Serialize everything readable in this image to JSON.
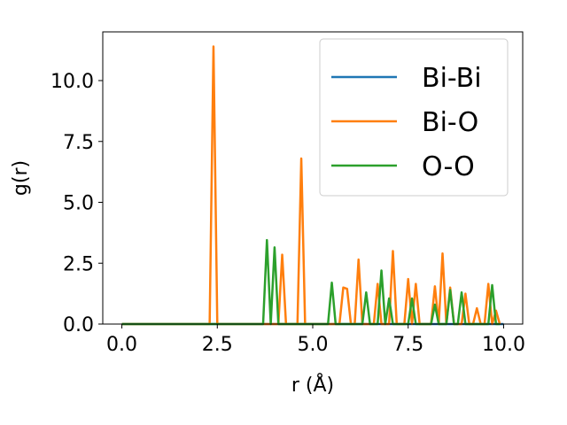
{
  "chart_data": {
    "type": "line",
    "title": "",
    "xlabel": "r (Å)",
    "ylabel": "g(r)",
    "xlim": [
      -0.5,
      10.5
    ],
    "ylim": [
      0,
      12
    ],
    "xticks": [
      0.0,
      2.5,
      5.0,
      7.5,
      10.0
    ],
    "xtick_labels": [
      "0.0",
      "2.5",
      "5.0",
      "7.5",
      "10.0"
    ],
    "yticks": [
      0.0,
      2.5,
      5.0,
      7.5,
      10.0
    ],
    "ytick_labels": [
      "0.0",
      "2.5",
      "5.0",
      "7.5",
      "10.0"
    ],
    "grid": false,
    "legend_position": "top-right",
    "series": [
      {
        "name": "Bi-Bi",
        "color": "#1f77b4",
        "x": [
          0.0,
          10.0
        ],
        "y": [
          0.0,
          0.0
        ]
      },
      {
        "name": "Bi-O",
        "color": "#ff7f0e",
        "x": [
          0.0,
          2.3,
          2.4,
          2.5,
          4.6,
          4.7,
          4.8,
          4.1,
          4.2,
          4.3,
          5.7,
          5.8,
          5.9,
          6.0,
          6.1,
          6.2,
          6.3,
          6.6,
          6.7,
          6.8,
          7.0,
          7.1,
          7.2,
          7.4,
          7.5,
          7.6,
          7.7,
          7.8,
          8.1,
          8.2,
          8.3,
          8.3,
          8.4,
          8.5,
          8.6,
          8.7,
          8.8,
          8.9,
          9.0,
          9.1,
          9.2,
          9.3,
          9.4,
          9.5,
          9.6,
          9.7,
          9.8,
          9.9
        ],
        "y": [
          0.0,
          0.0,
          11.4,
          0.0,
          0.0,
          6.8,
          0.0,
          0.0,
          2.85,
          0.0,
          0.0,
          1.5,
          1.45,
          0.0,
          0.0,
          2.65,
          0.0,
          0.0,
          1.65,
          0.0,
          0.0,
          3.0,
          0.0,
          0.0,
          1.85,
          0.0,
          1.65,
          0.0,
          0.0,
          1.55,
          0.0,
          0.0,
          2.9,
          0.0,
          1.5,
          0.0,
          0.0,
          0.0,
          1.25,
          0.0,
          0.0,
          0.65,
          0.0,
          0.0,
          1.65,
          0.0,
          0.55,
          0.0
        ]
      },
      {
        "name": "O-O",
        "color": "#2ca02c",
        "x": [
          0.0,
          3.7,
          3.8,
          3.9,
          4.0,
          4.1,
          5.4,
          5.5,
          5.6,
          6.3,
          6.4,
          6.5,
          6.7,
          6.8,
          6.9,
          7.0,
          7.1,
          7.5,
          7.6,
          7.7,
          8.1,
          8.2,
          8.3,
          8.5,
          8.6,
          8.7,
          8.8,
          8.9,
          9.0,
          9.6,
          9.7,
          9.8,
          9.9
        ],
        "y": [
          0.0,
          0.0,
          3.45,
          0.0,
          3.15,
          0.0,
          0.0,
          1.7,
          0.0,
          0.0,
          1.3,
          0.0,
          0.0,
          2.2,
          0.0,
          1.05,
          0.0,
          0.0,
          1.05,
          0.0,
          0.0,
          0.8,
          0.0,
          0.0,
          1.4,
          0.0,
          0.0,
          1.3,
          0.0,
          0.0,
          1.6,
          0.0,
          0.0
        ]
      }
    ]
  }
}
